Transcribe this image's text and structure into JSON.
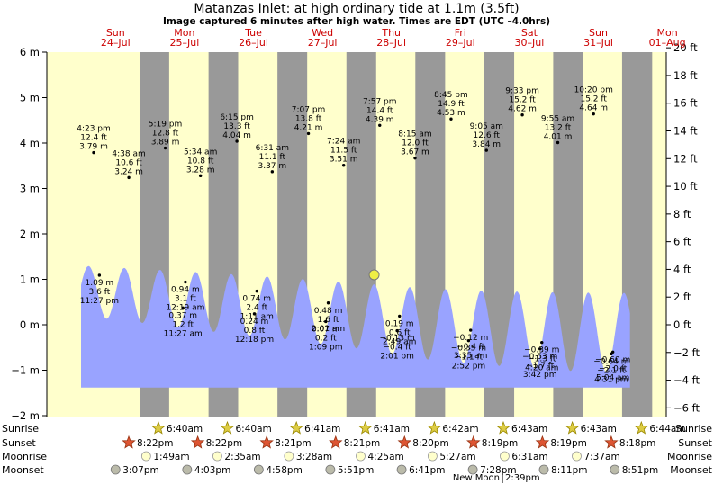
{
  "header": {
    "title": "Matanzas Inlet: at high  ordinary tide at 1.1m (3.5ft)",
    "subtitle": "Image captured 6 minutes after high water. Times are EDT (UTC –4.0hrs)"
  },
  "days": [
    {
      "dow": "Sun",
      "date": "24–Jul"
    },
    {
      "dow": "Mon",
      "date": "25–Jul"
    },
    {
      "dow": "Tue",
      "date": "26–Jul"
    },
    {
      "dow": "Wed",
      "date": "27–Jul"
    },
    {
      "dow": "Thu",
      "date": "28–Jul"
    },
    {
      "dow": "Fri",
      "date": "29–Jul"
    },
    {
      "dow": "Sat",
      "date": "30–Jul"
    },
    {
      "dow": "Sun",
      "date": "31–Jul"
    },
    {
      "dow": "Mon",
      "date": "01–Aug"
    }
  ],
  "colors": {
    "day_bg": "#ffffcc",
    "night_bg": "#999999",
    "water": "#99a3ff",
    "day_label": "#cc0000",
    "current_marker": "#eeee44"
  },
  "chart_data": {
    "type": "area",
    "y_left_unit": "m",
    "y_right_unit": "ft",
    "y_left_ticks": [
      "6 m",
      "5 m",
      "4 m",
      "3 m",
      "2 m",
      "1 m",
      "0 m",
      "−1 m",
      "−2 m"
    ],
    "y_right_ticks": [
      "20 ft",
      "18 ft",
      "16 ft",
      "14 ft",
      "12 ft",
      "10 ft",
      "8 ft",
      "6 ft",
      "4 ft",
      "2 ft",
      "0 ft",
      "−2 ft",
      "−4 ft",
      "−6 ft"
    ],
    "ylim_m": [
      -2,
      6
    ],
    "x_range_days": [
      24,
      32
    ],
    "current": {
      "day": 28.25,
      "height_m": 1.1
    },
    "tides": [
      {
        "kind": "high",
        "day": 24.266,
        "height_m": 1.09,
        "label": [
          "1.09 m",
          "3.6 ft",
          "11:27 pm"
        ]
      },
      {
        "kind": "low",
        "day": 25.478,
        "height_m": 0.37,
        "label": [
          "0.37 m",
          "1.2 ft",
          "11:27 am"
        ]
      },
      {
        "kind": "high",
        "day": 25.513,
        "height_m": 0.94,
        "label": [
          "0.94 m",
          "3.1 ft",
          "12:19 am"
        ]
      },
      {
        "kind": "low",
        "day": 26.513,
        "height_m": 0.24,
        "label": [
          "0.24 m",
          "0.8 ft",
          "12:18 pm"
        ]
      },
      {
        "kind": "high",
        "day": 26.549,
        "height_m": 0.74,
        "label": [
          "0.74 m",
          "2.4 ft",
          "1:11 am"
        ]
      },
      {
        "kind": "low",
        "day": 27.548,
        "height_m": 0.07,
        "label": [
          "0.07 m",
          "0.2 ft",
          "1:09 pm"
        ]
      },
      {
        "kind": "high",
        "day": 27.584,
        "height_m": 0.48,
        "label": [
          "0.48 m",
          "1.6 ft",
          "2:01 am"
        ]
      },
      {
        "kind": "low",
        "day": 28.584,
        "height_m": -0.13,
        "label": [
          "−0.13 m",
          "−0.4 ft",
          "2:01 pm"
        ]
      },
      {
        "kind": "high",
        "day": 28.618,
        "height_m": 0.19,
        "label": [
          "0.19 m",
          "0.6 ft",
          "2:49 am"
        ]
      },
      {
        "kind": "low",
        "day": 29.619,
        "height_m": -0.35,
        "label": [
          "−0.35 m",
          "−1.1 ft",
          "2:52 pm"
        ]
      },
      {
        "kind": "high",
        "day": 29.649,
        "height_m": -0.12,
        "label": [
          "−0.12 m",
          "−0.4 ft",
          "3:35 am"
        ]
      },
      {
        "kind": "low",
        "day": 30.654,
        "height_m": -0.53,
        "label": [
          "−0.53 m",
          "−1.7 ft",
          "3:42 pm"
        ]
      },
      {
        "kind": "high",
        "day": 30.681,
        "height_m": -0.39,
        "label": [
          "−0.39 m",
          "−1.3 ft",
          "4:20 am"
        ]
      },
      {
        "kind": "low",
        "day": 31.688,
        "height_m": -0.64,
        "label": [
          "−0.64 m",
          "−2.1 ft",
          "4:31 pm"
        ]
      },
      {
        "kind": "high",
        "day": 31.711,
        "height_m": -0.6,
        "label": [
          "−0.60 m",
          "−2.0 ft",
          "5:04 am"
        ]
      }
    ],
    "peaks": [
      {
        "day": 24.183,
        "height_m": 3.79,
        "label": [
          "4:23 pm",
          "12.4 ft",
          "3.79 m"
        ]
      },
      {
        "day": 24.693,
        "height_m": 3.24,
        "label": [
          "4:38 am",
          "10.6 ft",
          "3.24 m"
        ]
      },
      {
        "day": 25.221,
        "height_m": 3.89,
        "label": [
          "5:19 pm",
          "12.8 ft",
          "3.89 m"
        ]
      },
      {
        "day": 25.732,
        "height_m": 3.28,
        "label": [
          "5:34 am",
          "10.8 ft",
          "3.28 m"
        ]
      },
      {
        "day": 26.26,
        "height_m": 4.04,
        "label": [
          "6:15 pm",
          "13.3 ft",
          "4.04 m"
        ]
      },
      {
        "day": 26.772,
        "height_m": 3.37,
        "label": [
          "6:31 am",
          "11.1 ft",
          "3.37 m"
        ]
      },
      {
        "day": 27.297,
        "height_m": 4.21,
        "label": [
          "7:07 pm",
          "13.8 ft",
          "4.21 m"
        ]
      },
      {
        "day": 27.808,
        "height_m": 3.51,
        "label": [
          "7:24 am",
          "11.5 ft",
          "3.51 m"
        ]
      },
      {
        "day": 28.331,
        "height_m": 4.39,
        "label": [
          "7:57 pm",
          "14.4 ft",
          "4.39 m"
        ]
      },
      {
        "day": 28.843,
        "height_m": 3.67,
        "label": [
          "8:15 am",
          "12.0 ft",
          "3.67 m"
        ]
      },
      {
        "day": 29.365,
        "height_m": 4.53,
        "label": [
          "8:45 pm",
          "14.9 ft",
          "4.53 m"
        ]
      },
      {
        "day": 29.878,
        "height_m": 3.84,
        "label": [
          "9:05 am",
          "12.6 ft",
          "3.84 m"
        ]
      },
      {
        "day": 30.398,
        "height_m": 4.62,
        "label": [
          "9:33 pm",
          "15.2 ft",
          "4.62 m"
        ]
      },
      {
        "day": 30.913,
        "height_m": 4.01,
        "label": [
          "9:55 am",
          "13.2 ft",
          "4.01 m"
        ]
      },
      {
        "day": 31.431,
        "height_m": 4.64,
        "label": [
          "10:20 pm",
          "15.2 ft",
          "4.64 m"
        ]
      }
    ],
    "curve_amplitude": [
      0.55,
      0.6,
      0.65,
      0.68,
      0.72,
      0.78,
      0.82,
      0.86,
      0.88
    ],
    "curve_mean": [
      0.75,
      0.62,
      0.48,
      0.35,
      0.2,
      0.02,
      -0.08,
      -0.15,
      -0.18
    ]
  },
  "astro": {
    "row_labels": [
      "Sunrise",
      "Sunset",
      "Moonrise",
      "Moonset"
    ],
    "sunrise": [
      {
        "day": 25.278,
        "time": "6:40am"
      },
      {
        "day": 26.278,
        "time": "6:40am"
      },
      {
        "day": 27.279,
        "time": "6:41am"
      },
      {
        "day": 28.279,
        "time": "6:41am"
      },
      {
        "day": 29.279,
        "time": "6:42am"
      },
      {
        "day": 30.28,
        "time": "6:43am"
      },
      {
        "day": 31.28,
        "time": "6:43am"
      },
      {
        "day": 32.281,
        "time": "6:44am"
      }
    ],
    "sunset": [
      {
        "day": 24.849,
        "time": "8:22pm"
      },
      {
        "day": 25.849,
        "time": "8:22pm"
      },
      {
        "day": 26.848,
        "time": "8:21pm"
      },
      {
        "day": 27.848,
        "time": "8:21pm"
      },
      {
        "day": 28.847,
        "time": "8:20pm"
      },
      {
        "day": 29.846,
        "time": "8:19pm"
      },
      {
        "day": 30.846,
        "time": "8:19pm"
      },
      {
        "day": 31.845,
        "time": "8:18pm"
      }
    ],
    "moonrise": [
      {
        "day": 25.075,
        "time": "1:49am"
      },
      {
        "day": 26.107,
        "time": "2:35am"
      },
      {
        "day": 27.144,
        "time": "3:28am"
      },
      {
        "day": 28.184,
        "time": "4:25am"
      },
      {
        "day": 29.227,
        "time": "5:27am"
      },
      {
        "day": 30.272,
        "time": "6:31am"
      },
      {
        "day": 31.317,
        "time": "7:37am"
      }
    ],
    "moonset": [
      {
        "day": 24.63,
        "time": "3:07pm"
      },
      {
        "day": 25.669,
        "time": "4:03pm"
      },
      {
        "day": 26.707,
        "time": "4:58pm"
      },
      {
        "day": 27.745,
        "time": "5:51pm"
      },
      {
        "day": 28.779,
        "time": "6:41pm"
      },
      {
        "day": 29.811,
        "time": "7:28pm"
      },
      {
        "day": 30.841,
        "time": "8:11pm"
      },
      {
        "day": 31.869,
        "time": "8:51pm"
      }
    ],
    "new_moon": {
      "label": "New Moon",
      "time": "2:39pm"
    }
  }
}
